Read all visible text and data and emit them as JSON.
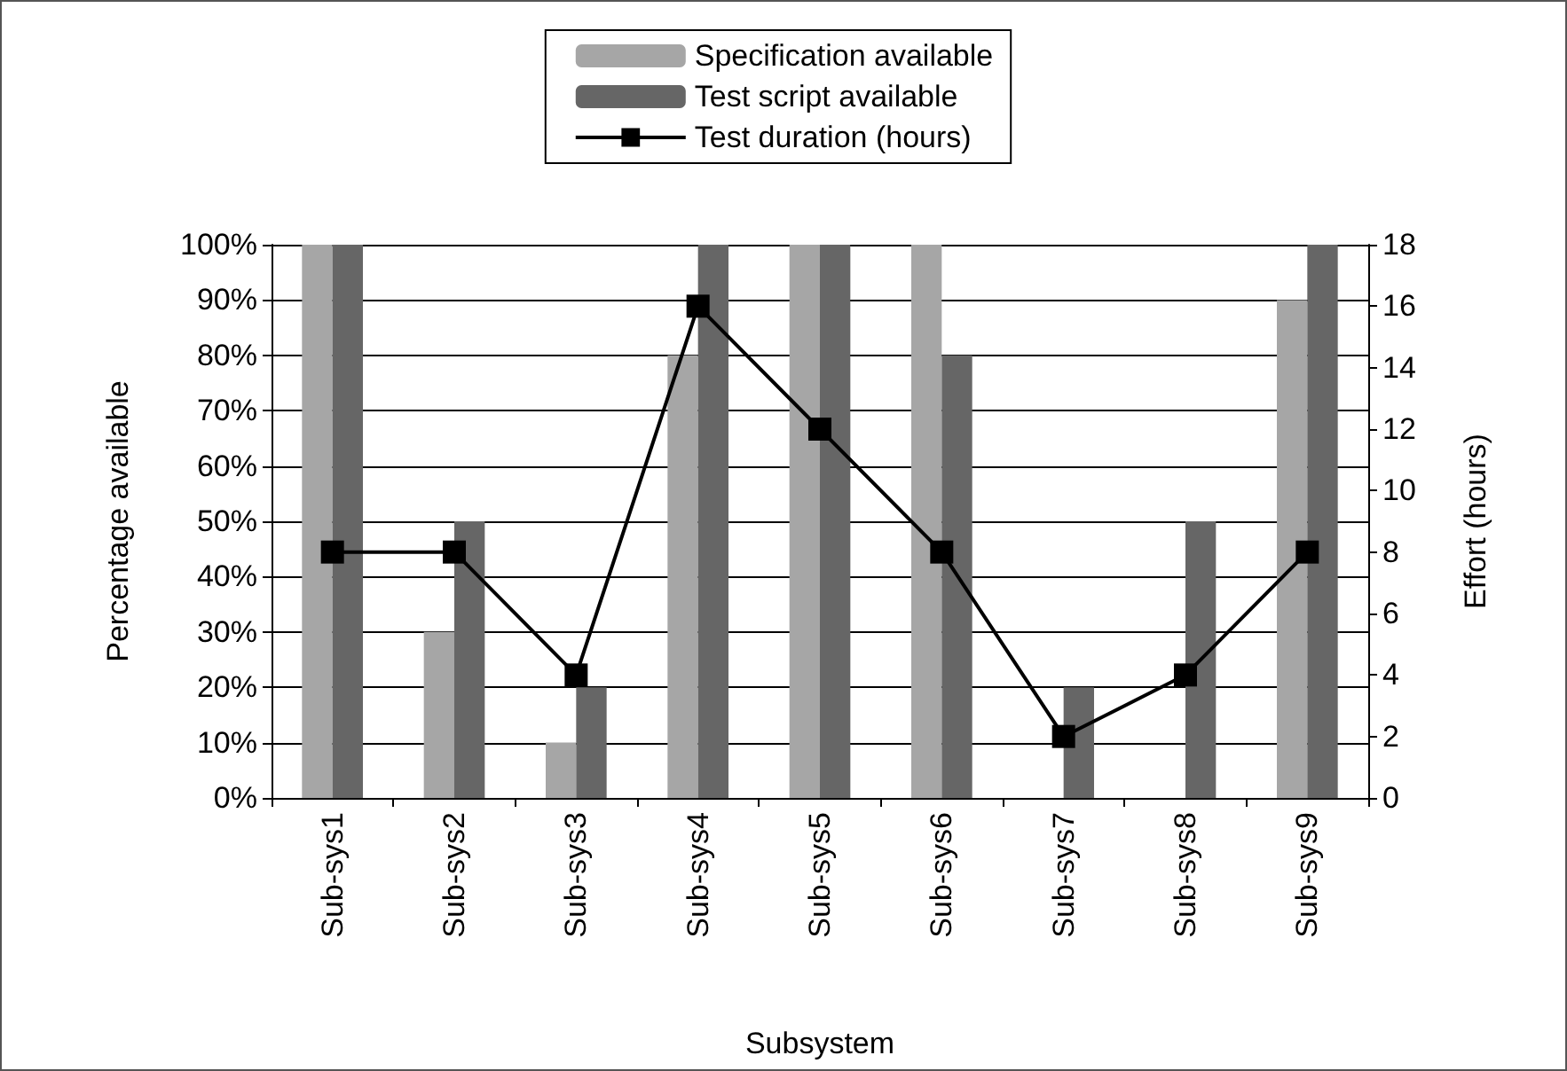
{
  "chart_data": {
    "type": "bar",
    "xlabel": "Subsystem",
    "ylabel": "Percentage available",
    "y2label": "Effort (hours)",
    "categories": [
      "Sub-sys1",
      "Sub-sys2",
      "Sub-sys3",
      "Sub-sys4",
      "Sub-sys5",
      "Sub-sys6",
      "Sub-sys7",
      "Sub-sys8",
      "Sub-sys9"
    ],
    "series": [
      {
        "name": "Specification available",
        "color": "#a6a6a6",
        "values": [
          100,
          30,
          10,
          80,
          100,
          100,
          0,
          0,
          90
        ]
      },
      {
        "name": "Test script available",
        "color": "#666666",
        "values": [
          100,
          50,
          20,
          100,
          100,
          80,
          20,
          50,
          100
        ]
      },
      {
        "name": "Test duration (hours)",
        "type": "line",
        "axis": "y2",
        "color": "#000000",
        "marker": "square",
        "line_style": "solid",
        "values": [
          8,
          8,
          4,
          16,
          12,
          8,
          2,
          4,
          8
        ]
      }
    ],
    "ylim": [
      0,
      100
    ],
    "yticks": [
      {
        "value": 0,
        "label": "0%"
      },
      {
        "value": 10,
        "label": "10%"
      },
      {
        "value": 20,
        "label": "20%"
      },
      {
        "value": 30,
        "label": "30%"
      },
      {
        "value": 40,
        "label": "40%"
      },
      {
        "value": 50,
        "label": "50%"
      },
      {
        "value": 60,
        "label": "60%"
      },
      {
        "value": 70,
        "label": "70%"
      },
      {
        "value": 80,
        "label": "80%"
      },
      {
        "value": 90,
        "label": "90%"
      },
      {
        "value": 100,
        "label": "100%"
      }
    ],
    "y2lim": [
      0,
      18
    ],
    "y2ticks": [
      0,
      2,
      4,
      6,
      8,
      10,
      12,
      14,
      16,
      18
    ],
    "grid": "y",
    "legend": "top"
  }
}
